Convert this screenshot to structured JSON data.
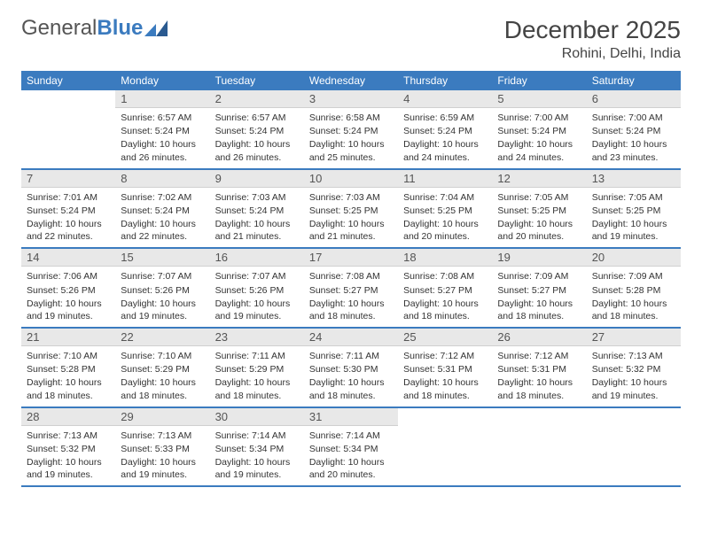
{
  "logo": {
    "text1": "General",
    "text2": "Blue"
  },
  "header": {
    "month": "December 2025",
    "location": "Rohini, Delhi, India"
  },
  "colors": {
    "header_bg": "#3b7bbf",
    "daynum_bg": "#e8e8e8",
    "border": "#3b7bbf"
  },
  "weekdays": [
    "Sunday",
    "Monday",
    "Tuesday",
    "Wednesday",
    "Thursday",
    "Friday",
    "Saturday"
  ],
  "weeks": [
    [
      null,
      {
        "n": "1",
        "sr": "Sunrise: 6:57 AM",
        "ss": "Sunset: 5:24 PM",
        "dl": "Daylight: 10 hours and 26 minutes."
      },
      {
        "n": "2",
        "sr": "Sunrise: 6:57 AM",
        "ss": "Sunset: 5:24 PM",
        "dl": "Daylight: 10 hours and 26 minutes."
      },
      {
        "n": "3",
        "sr": "Sunrise: 6:58 AM",
        "ss": "Sunset: 5:24 PM",
        "dl": "Daylight: 10 hours and 25 minutes."
      },
      {
        "n": "4",
        "sr": "Sunrise: 6:59 AM",
        "ss": "Sunset: 5:24 PM",
        "dl": "Daylight: 10 hours and 24 minutes."
      },
      {
        "n": "5",
        "sr": "Sunrise: 7:00 AM",
        "ss": "Sunset: 5:24 PM",
        "dl": "Daylight: 10 hours and 24 minutes."
      },
      {
        "n": "6",
        "sr": "Sunrise: 7:00 AM",
        "ss": "Sunset: 5:24 PM",
        "dl": "Daylight: 10 hours and 23 minutes."
      }
    ],
    [
      {
        "n": "7",
        "sr": "Sunrise: 7:01 AM",
        "ss": "Sunset: 5:24 PM",
        "dl": "Daylight: 10 hours and 22 minutes."
      },
      {
        "n": "8",
        "sr": "Sunrise: 7:02 AM",
        "ss": "Sunset: 5:24 PM",
        "dl": "Daylight: 10 hours and 22 minutes."
      },
      {
        "n": "9",
        "sr": "Sunrise: 7:03 AM",
        "ss": "Sunset: 5:24 PM",
        "dl": "Daylight: 10 hours and 21 minutes."
      },
      {
        "n": "10",
        "sr": "Sunrise: 7:03 AM",
        "ss": "Sunset: 5:25 PM",
        "dl": "Daylight: 10 hours and 21 minutes."
      },
      {
        "n": "11",
        "sr": "Sunrise: 7:04 AM",
        "ss": "Sunset: 5:25 PM",
        "dl": "Daylight: 10 hours and 20 minutes."
      },
      {
        "n": "12",
        "sr": "Sunrise: 7:05 AM",
        "ss": "Sunset: 5:25 PM",
        "dl": "Daylight: 10 hours and 20 minutes."
      },
      {
        "n": "13",
        "sr": "Sunrise: 7:05 AM",
        "ss": "Sunset: 5:25 PM",
        "dl": "Daylight: 10 hours and 19 minutes."
      }
    ],
    [
      {
        "n": "14",
        "sr": "Sunrise: 7:06 AM",
        "ss": "Sunset: 5:26 PM",
        "dl": "Daylight: 10 hours and 19 minutes."
      },
      {
        "n": "15",
        "sr": "Sunrise: 7:07 AM",
        "ss": "Sunset: 5:26 PM",
        "dl": "Daylight: 10 hours and 19 minutes."
      },
      {
        "n": "16",
        "sr": "Sunrise: 7:07 AM",
        "ss": "Sunset: 5:26 PM",
        "dl": "Daylight: 10 hours and 19 minutes."
      },
      {
        "n": "17",
        "sr": "Sunrise: 7:08 AM",
        "ss": "Sunset: 5:27 PM",
        "dl": "Daylight: 10 hours and 18 minutes."
      },
      {
        "n": "18",
        "sr": "Sunrise: 7:08 AM",
        "ss": "Sunset: 5:27 PM",
        "dl": "Daylight: 10 hours and 18 minutes."
      },
      {
        "n": "19",
        "sr": "Sunrise: 7:09 AM",
        "ss": "Sunset: 5:27 PM",
        "dl": "Daylight: 10 hours and 18 minutes."
      },
      {
        "n": "20",
        "sr": "Sunrise: 7:09 AM",
        "ss": "Sunset: 5:28 PM",
        "dl": "Daylight: 10 hours and 18 minutes."
      }
    ],
    [
      {
        "n": "21",
        "sr": "Sunrise: 7:10 AM",
        "ss": "Sunset: 5:28 PM",
        "dl": "Daylight: 10 hours and 18 minutes."
      },
      {
        "n": "22",
        "sr": "Sunrise: 7:10 AM",
        "ss": "Sunset: 5:29 PM",
        "dl": "Daylight: 10 hours and 18 minutes."
      },
      {
        "n": "23",
        "sr": "Sunrise: 7:11 AM",
        "ss": "Sunset: 5:29 PM",
        "dl": "Daylight: 10 hours and 18 minutes."
      },
      {
        "n": "24",
        "sr": "Sunrise: 7:11 AM",
        "ss": "Sunset: 5:30 PM",
        "dl": "Daylight: 10 hours and 18 minutes."
      },
      {
        "n": "25",
        "sr": "Sunrise: 7:12 AM",
        "ss": "Sunset: 5:31 PM",
        "dl": "Daylight: 10 hours and 18 minutes."
      },
      {
        "n": "26",
        "sr": "Sunrise: 7:12 AM",
        "ss": "Sunset: 5:31 PM",
        "dl": "Daylight: 10 hours and 18 minutes."
      },
      {
        "n": "27",
        "sr": "Sunrise: 7:13 AM",
        "ss": "Sunset: 5:32 PM",
        "dl": "Daylight: 10 hours and 19 minutes."
      }
    ],
    [
      {
        "n": "28",
        "sr": "Sunrise: 7:13 AM",
        "ss": "Sunset: 5:32 PM",
        "dl": "Daylight: 10 hours and 19 minutes."
      },
      {
        "n": "29",
        "sr": "Sunrise: 7:13 AM",
        "ss": "Sunset: 5:33 PM",
        "dl": "Daylight: 10 hours and 19 minutes."
      },
      {
        "n": "30",
        "sr": "Sunrise: 7:14 AM",
        "ss": "Sunset: 5:34 PM",
        "dl": "Daylight: 10 hours and 19 minutes."
      },
      {
        "n": "31",
        "sr": "Sunrise: 7:14 AM",
        "ss": "Sunset: 5:34 PM",
        "dl": "Daylight: 10 hours and 20 minutes."
      },
      null,
      null,
      null
    ]
  ]
}
